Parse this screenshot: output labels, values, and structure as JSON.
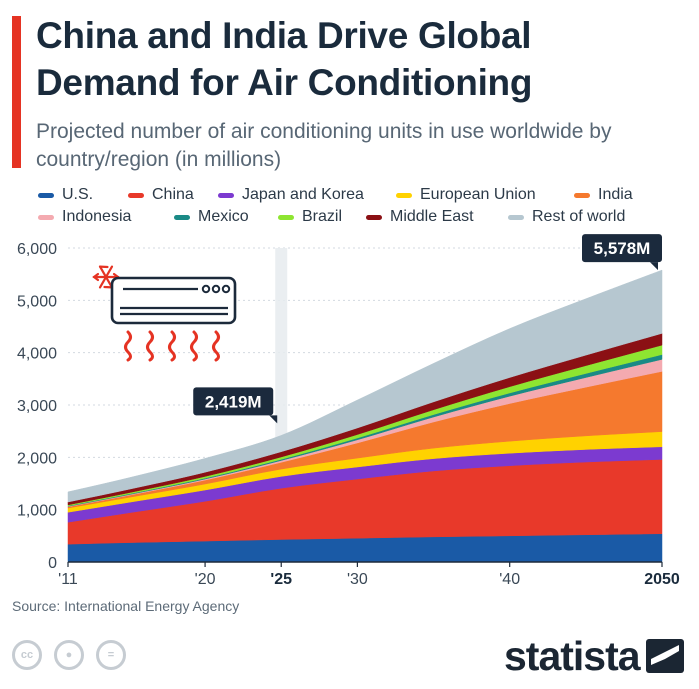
{
  "header": {
    "title": "China and India Drive Global Demand for Air Conditioning",
    "subtitle": "Projected number of air conditioning units in use worldwide by country/region (in millions)"
  },
  "legend": [
    {
      "label": "U.S.",
      "color": "#1a5aa6"
    },
    {
      "label": "China",
      "color": "#e8392a"
    },
    {
      "label": "Japan and Korea",
      "color": "#7c3ad0"
    },
    {
      "label": "European Union",
      "color": "#ffd200"
    },
    {
      "label": "India",
      "color": "#f5792e"
    },
    {
      "label": "Indonesia",
      "color": "#f4aab0"
    },
    {
      "label": "Mexico",
      "color": "#1a8a86"
    },
    {
      "label": "Brazil",
      "color": "#8ee531"
    },
    {
      "label": "Middle East",
      "color": "#8b1014"
    },
    {
      "label": "Rest of world",
      "color": "#b6c7d0"
    }
  ],
  "chart_data": {
    "type": "area",
    "stacked": true,
    "title": "China and India Drive Global Demand for Air Conditioning",
    "ylabel": "Air conditioning units in use (millions)",
    "xlabel": "",
    "x": [
      2011,
      2015,
      2020,
      2025,
      2030,
      2035,
      2040,
      2045,
      2050
    ],
    "xlim": [
      2011,
      2050
    ],
    "ylim": [
      0,
      6000
    ],
    "yticks": [
      0,
      1000,
      2000,
      3000,
      4000,
      5000,
      6000
    ],
    "ytick_labels": [
      "0",
      "1,000",
      "2,000",
      "3,000",
      "4,000",
      "5,000",
      "6,000"
    ],
    "xticks": [
      2011,
      2020,
      2025,
      2030,
      2040,
      2050
    ],
    "xtick_labels": [
      "'11",
      "'20",
      "'25",
      "'30",
      "'40",
      "2050"
    ],
    "highlight_year": 2025,
    "series": [
      {
        "name": "U.S.",
        "color": "#1a5aa6",
        "values": [
          340,
          370,
          400,
          430,
          455,
          480,
          500,
          520,
          540
        ]
      },
      {
        "name": "China",
        "color": "#e8392a",
        "values": [
          420,
          570,
          760,
          980,
          1130,
          1260,
          1340,
          1390,
          1420
        ]
      },
      {
        "name": "Japan and Korea",
        "color": "#7c3ad0",
        "values": [
          190,
          200,
          215,
          225,
          230,
          235,
          238,
          240,
          242
        ]
      },
      {
        "name": "European Union",
        "color": "#ffd200",
        "values": [
          80,
          95,
          115,
          140,
          170,
          200,
          230,
          260,
          290
        ]
      },
      {
        "name": "India",
        "color": "#f5792e",
        "values": [
          25,
          40,
          75,
          130,
          290,
          500,
          720,
          930,
          1150
        ]
      },
      {
        "name": "Indonesia",
        "color": "#f4aab0",
        "values": [
          8,
          12,
          20,
          35,
          60,
          95,
          140,
          185,
          230
        ]
      },
      {
        "name": "Mexico",
        "color": "#1a8a86",
        "values": [
          10,
          13,
          17,
          22,
          34,
          47,
          62,
          77,
          92
        ]
      },
      {
        "name": "Brazil",
        "color": "#8ee531",
        "values": [
          18,
          24,
          33,
          45,
          67,
          92,
          120,
          150,
          180
        ]
      },
      {
        "name": "Middle East",
        "color": "#8b1014",
        "values": [
          55,
          65,
          80,
          100,
          125,
          150,
          175,
          200,
          224
        ]
      },
      {
        "name": "Rest of world",
        "color": "#b6c7d0",
        "values": [
          194,
          221,
          265,
          312,
          534,
          736,
          935,
          1078,
          1210
        ]
      }
    ],
    "annotations": [
      {
        "label": "2,419M",
        "x": 2025,
        "y": 2419
      },
      {
        "label": "5,578M",
        "x": 2050,
        "y": 5578
      }
    ]
  },
  "footer": {
    "source": "Source: International Energy Agency",
    "brand": "statista",
    "license_icons": [
      "cc",
      "by",
      "nd"
    ]
  },
  "icons": [
    "snowflake-icon",
    "air-conditioner-icon",
    "heat-waves-icon"
  ]
}
